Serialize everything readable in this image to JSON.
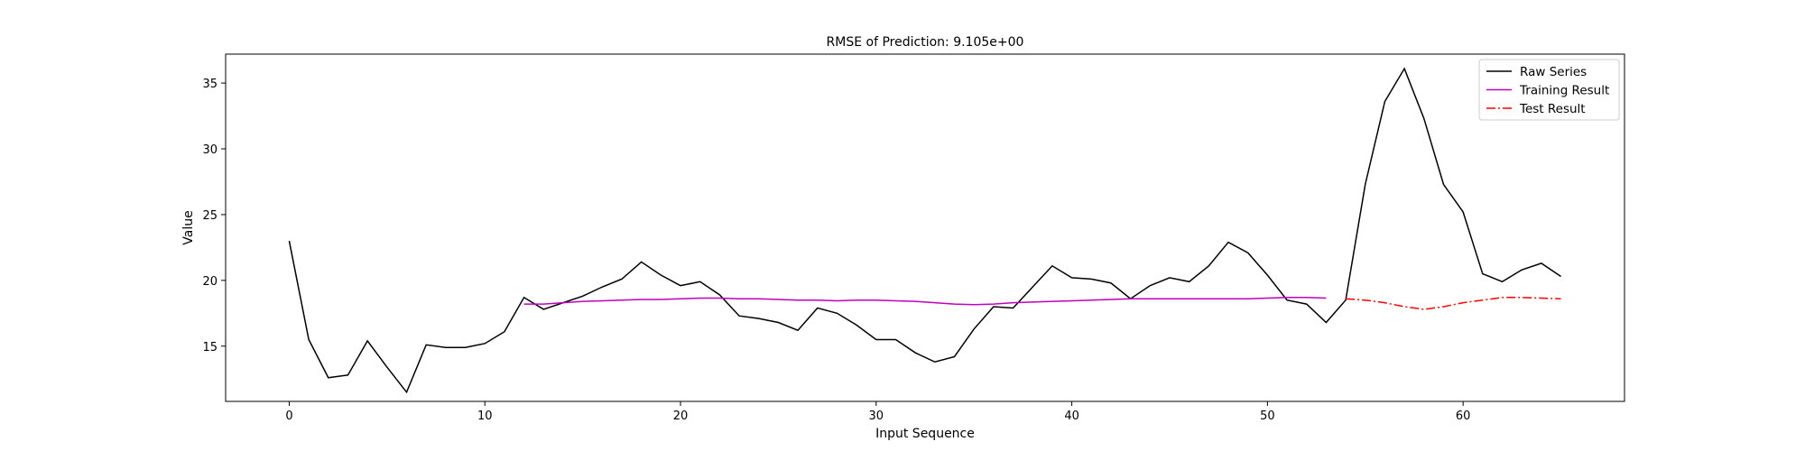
{
  "chart_data": {
    "type": "line",
    "title": "RMSE of Prediction: 9.105e+00",
    "xlabel": "Input Sequence",
    "ylabel": "Value",
    "xlim": [
      -3.25,
      68.25
    ],
    "ylim": [
      10.8,
      37.2
    ],
    "xticks": [
      0,
      10,
      20,
      30,
      40,
      50,
      60
    ],
    "yticks": [
      15,
      20,
      25,
      30,
      35
    ],
    "grid": false,
    "legend": {
      "position": "top-right"
    },
    "series": [
      {
        "name": "Raw Series",
        "color": "#000000",
        "dash": "solid",
        "x": [
          0,
          1,
          2,
          3,
          4,
          5,
          6,
          7,
          8,
          9,
          10,
          11,
          12,
          13,
          14,
          15,
          16,
          17,
          18,
          19,
          20,
          21,
          22,
          23,
          24,
          25,
          26,
          27,
          28,
          29,
          30,
          31,
          32,
          33,
          34,
          35,
          36,
          37,
          38,
          39,
          40,
          41,
          42,
          43,
          44,
          45,
          46,
          47,
          48,
          49,
          50,
          51,
          52,
          53,
          54,
          55,
          56,
          57,
          58,
          59,
          60,
          61,
          62,
          63,
          64,
          65
        ],
        "values": [
          23.0,
          15.5,
          12.6,
          12.8,
          15.4,
          13.4,
          11.5,
          15.1,
          14.9,
          14.9,
          15.2,
          16.1,
          18.7,
          17.8,
          18.3,
          18.8,
          19.5,
          20.1,
          21.4,
          20.4,
          19.6,
          19.9,
          18.9,
          17.3,
          17.1,
          16.8,
          16.2,
          17.9,
          17.5,
          16.6,
          15.5,
          15.5,
          14.5,
          13.8,
          14.2,
          16.3,
          18.0,
          17.9,
          19.5,
          21.1,
          20.2,
          20.1,
          19.8,
          18.6,
          19.6,
          20.2,
          19.9,
          21.1,
          22.9,
          22.1,
          20.4,
          18.5,
          18.2,
          16.8,
          18.5,
          27.3,
          33.6,
          36.1,
          32.3,
          27.3,
          25.2,
          20.5,
          19.9,
          20.8,
          21.3,
          20.3
        ]
      },
      {
        "name": "Training Result",
        "color": "#bf00bf",
        "dash": "solid",
        "x": [
          12,
          13,
          14,
          15,
          16,
          17,
          18,
          19,
          20,
          21,
          22,
          23,
          24,
          25,
          26,
          27,
          28,
          29,
          30,
          31,
          32,
          33,
          34,
          35,
          36,
          37,
          38,
          39,
          40,
          41,
          42,
          43,
          44,
          45,
          46,
          47,
          48,
          49,
          50,
          51,
          52,
          53
        ],
        "values": [
          18.2,
          18.2,
          18.3,
          18.4,
          18.45,
          18.5,
          18.55,
          18.55,
          18.6,
          18.65,
          18.65,
          18.6,
          18.6,
          18.55,
          18.5,
          18.5,
          18.45,
          18.5,
          18.5,
          18.45,
          18.4,
          18.3,
          18.2,
          18.15,
          18.2,
          18.3,
          18.35,
          18.4,
          18.45,
          18.5,
          18.55,
          18.6,
          18.6,
          18.6,
          18.6,
          18.6,
          18.6,
          18.6,
          18.65,
          18.7,
          18.7,
          18.65
        ]
      },
      {
        "name": "Test Result",
        "color": "#ff0000",
        "dash": "dashdot",
        "x": [
          54,
          55,
          56,
          57,
          58,
          59,
          60,
          61,
          62,
          63,
          64,
          65
        ],
        "values": [
          18.6,
          18.5,
          18.3,
          18.0,
          17.8,
          18.0,
          18.3,
          18.5,
          18.7,
          18.7,
          18.65,
          18.6
        ]
      }
    ]
  }
}
